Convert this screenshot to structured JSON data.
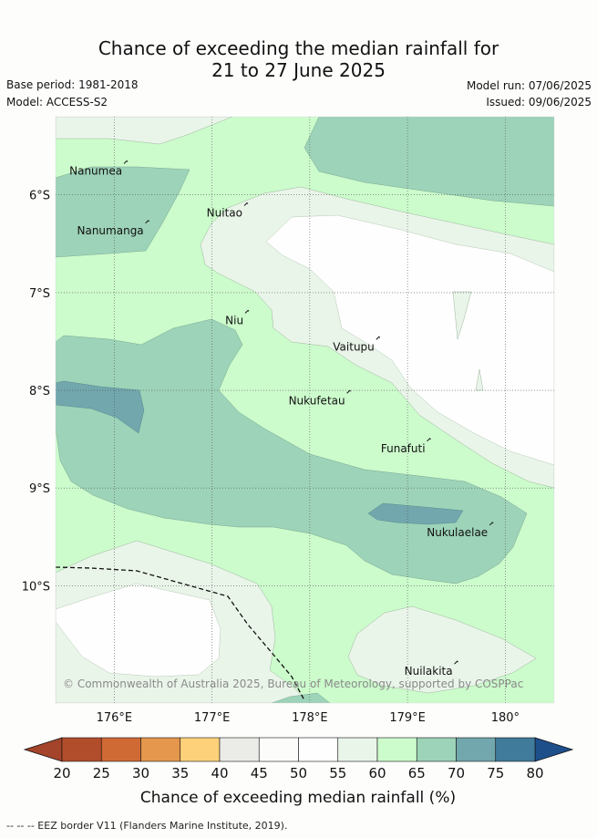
{
  "title_line1": "Chance of exceeding the median rainfall for",
  "title_line2": "21 to 27 June 2025",
  "base_period": "Base period: 1981-2018",
  "model": "Model: ACCESS-S2",
  "model_run": "Model run: 07/06/2025",
  "issued": "Issued: 09/06/2025",
  "map": {
    "lon_range": [
      175.4,
      180.5
    ],
    "lat_range": [
      -11.2,
      -5.2
    ],
    "lon_ticks": [
      {
        "value": 176,
        "label": "176°E"
      },
      {
        "value": 177,
        "label": "177°E"
      },
      {
        "value": 178,
        "label": "178°E"
      },
      {
        "value": 179,
        "label": "179°E"
      },
      {
        "value": 180,
        "label": "180°"
      }
    ],
    "lat_ticks": [
      {
        "value": -6,
        "label": "6°S"
      },
      {
        "value": -7,
        "label": "7°S"
      },
      {
        "value": -8,
        "label": "8°S"
      },
      {
        "value": -9,
        "label": "9°S"
      },
      {
        "value": -10,
        "label": "10°S"
      }
    ],
    "places": [
      {
        "name": "Nanumea",
        "lon": 176.1,
        "lat": -5.68
      },
      {
        "name": "Nanumanga",
        "lon": 176.32,
        "lat": -6.29
      },
      {
        "name": "Nuitao",
        "lon": 177.33,
        "lat": -6.11
      },
      {
        "name": "Niu",
        "lon": 177.34,
        "lat": -7.21
      },
      {
        "name": "Vaitupu",
        "lon": 178.68,
        "lat": -7.48
      },
      {
        "name": "Nukufetau",
        "lon": 178.38,
        "lat": -8.03
      },
      {
        "name": "Funafuti",
        "lon": 179.2,
        "lat": -8.52
      },
      {
        "name": "Nukulaelae",
        "lon": 179.84,
        "lat": -9.38
      },
      {
        "name": "Nuilakita",
        "lon": 179.48,
        "lat": -10.8
      }
    ],
    "copyright": "© Commonwealth of Australia 2025, Bureau of Meteorology, supported by COSPPac"
  },
  "colorbar": {
    "ticks": [
      "20",
      "25",
      "30",
      "35",
      "40",
      "45",
      "50",
      "55",
      "60",
      "65",
      "70",
      "75",
      "80"
    ],
    "colors": [
      "#b24d2c",
      "#d06a35",
      "#e4974d",
      "#fcd17a",
      "#ebebe8",
      "#fcfdfb",
      "#fdfefd",
      "#eaf5ea",
      "#ccfbcc",
      "#9dd3b8",
      "#71a7ad",
      "#417b9b"
    ],
    "under_color": "#a4442a",
    "over_color": "#1d4f8b",
    "label": "Chance of exceeding median rainfall (%)"
  },
  "legend_footnote": "--  --  -- EEZ border V11 (Flanders Marine Institute, 2019)."
}
